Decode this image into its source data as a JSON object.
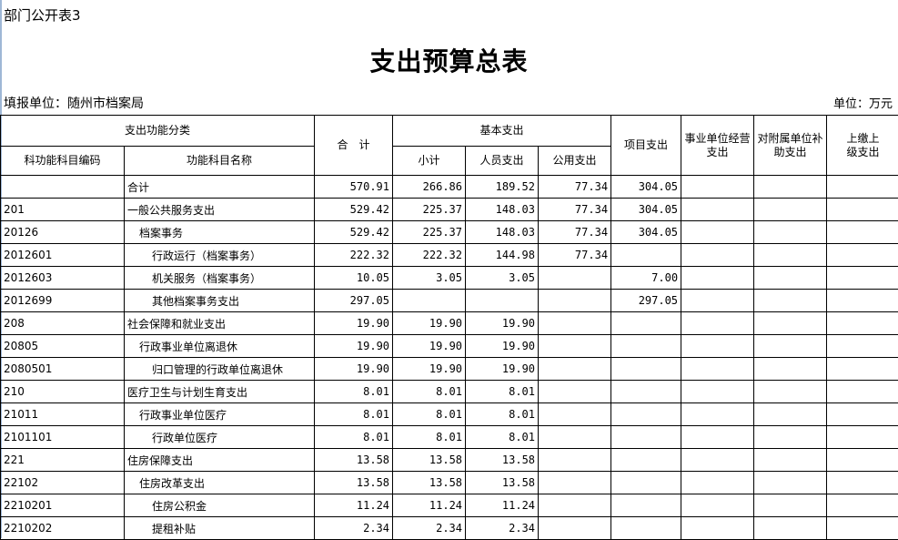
{
  "sheet_label": "部门公开表3",
  "title": "支出预算总表",
  "reporting_unit": "填报单位：随州市档案局",
  "unit": "单位：万元",
  "headers": {
    "function_category": "支出功能分类",
    "code": "科功能科目编码",
    "name": "功能科目名称",
    "total": "合　计",
    "basic": "基本支出",
    "subtotal": "小计",
    "personnel": "人员支出",
    "public": "公用支出",
    "project": "项目支出",
    "business": "事业单位经营支出",
    "subsidy": "对附属单位补助支出",
    "upper": "上缴上级支出"
  },
  "rows": [
    {
      "code": "",
      "name": "合计",
      "level": 1,
      "total": "570.91",
      "subtotal": "266.86",
      "personnel": "189.52",
      "public": "77.34",
      "project": "304.05"
    },
    {
      "code": "201",
      "name": "一般公共服务支出",
      "level": 1,
      "total": "529.42",
      "subtotal": "225.37",
      "personnel": "148.03",
      "public": "77.34",
      "project": "304.05"
    },
    {
      "code": "20126",
      "name": "档案事务",
      "level": 2,
      "total": "529.42",
      "subtotal": "225.37",
      "personnel": "148.03",
      "public": "77.34",
      "project": "304.05"
    },
    {
      "code": "2012601",
      "name": "行政运行（档案事务）",
      "level": 3,
      "total": "222.32",
      "subtotal": "222.32",
      "personnel": "144.98",
      "public": "77.34",
      "project": ""
    },
    {
      "code": "2012603",
      "name": "机关服务（档案事务）",
      "level": 3,
      "total": "10.05",
      "subtotal": "3.05",
      "personnel": "3.05",
      "public": "",
      "project": "7.00"
    },
    {
      "code": "2012699",
      "name": "其他档案事务支出",
      "level": 3,
      "total": "297.05",
      "subtotal": "",
      "personnel": "",
      "public": "",
      "project": "297.05"
    },
    {
      "code": "208",
      "name": "社会保障和就业支出",
      "level": 1,
      "total": "19.90",
      "subtotal": "19.90",
      "personnel": "19.90",
      "public": "",
      "project": ""
    },
    {
      "code": "20805",
      "name": "行政事业单位离退休",
      "level": 2,
      "total": "19.90",
      "subtotal": "19.90",
      "personnel": "19.90",
      "public": "",
      "project": ""
    },
    {
      "code": "2080501",
      "name": "归口管理的行政单位离退休",
      "level": 3,
      "total": "19.90",
      "subtotal": "19.90",
      "personnel": "19.90",
      "public": "",
      "project": ""
    },
    {
      "code": "210",
      "name": "医疗卫生与计划生育支出",
      "level": 1,
      "total": "8.01",
      "subtotal": "8.01",
      "personnel": "8.01",
      "public": "",
      "project": ""
    },
    {
      "code": "21011",
      "name": "行政事业单位医疗",
      "level": 2,
      "total": "8.01",
      "subtotal": "8.01",
      "personnel": "8.01",
      "public": "",
      "project": ""
    },
    {
      "code": "2101101",
      "name": "行政单位医疗",
      "level": 3,
      "total": "8.01",
      "subtotal": "8.01",
      "personnel": "8.01",
      "public": "",
      "project": ""
    },
    {
      "code": "221",
      "name": "住房保障支出",
      "level": 1,
      "total": "13.58",
      "subtotal": "13.58",
      "personnel": "13.58",
      "public": "",
      "project": ""
    },
    {
      "code": "22102",
      "name": "住房改革支出",
      "level": 2,
      "total": "13.58",
      "subtotal": "13.58",
      "personnel": "13.58",
      "public": "",
      "project": ""
    },
    {
      "code": "2210201",
      "name": "住房公积金",
      "level": 3,
      "total": "11.24",
      "subtotal": "11.24",
      "personnel": "11.24",
      "public": "",
      "project": ""
    },
    {
      "code": "2210202",
      "name": "提租补贴",
      "level": 3,
      "total": "2.34",
      "subtotal": "2.34",
      "personnel": "2.34",
      "public": "",
      "project": ""
    }
  ]
}
